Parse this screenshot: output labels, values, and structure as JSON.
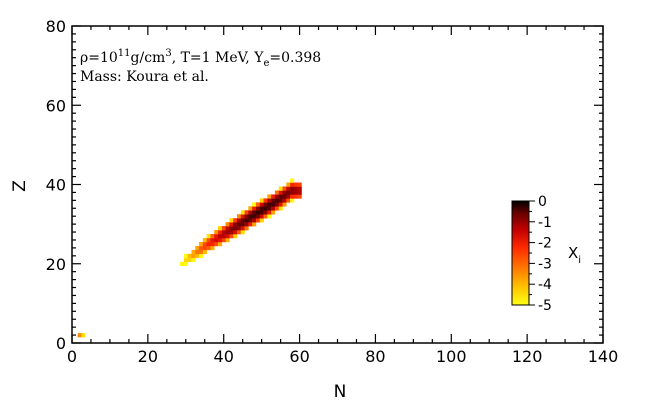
{
  "chart_data": {
    "type": "heatmap",
    "xlabel": "N",
    "ylabel": "Z",
    "xlim": [
      0,
      140
    ],
    "ylim": [
      0,
      80
    ],
    "xticks": [
      "0",
      "20",
      "40",
      "60",
      "80",
      "100",
      "120",
      "140"
    ],
    "yticks": [
      "0",
      "20",
      "40",
      "60",
      "80"
    ],
    "annotation": {
      "line1": {
        "rho_prefix": "ρ=10",
        "rho_exp": "11",
        "rho_unit": "g/cm",
        "rho_unit_exp": "3",
        "temp": ", T=1 MeV, Y",
        "ye_sub": "e",
        "ye_val": "=0.398"
      },
      "line2": "Mass: Koura et al."
    },
    "colorbar": {
      "label_main": "X",
      "label_sub": "i",
      "ticks": [
        "0",
        "-1",
        "-2",
        "-3",
        "-4",
        "-5"
      ],
      "range": [
        -5,
        0
      ],
      "colors": [
        "#ffff14",
        "#ffcc00",
        "#ff7a00",
        "#ff2a00",
        "#c40000",
        "#6a0000",
        "#000000"
      ]
    },
    "ridge": {
      "description_points_N": [
        26,
        30,
        35,
        40,
        45,
        50,
        55,
        58
      ],
      "center_Z": [
        18,
        21,
        24.5,
        27.5,
        30.5,
        33.5,
        36.5,
        38.5
      ],
      "peak_N": 50,
      "peak_Z": 34
    },
    "isolated_points": [
      {
        "N": 2,
        "Z": 2,
        "logX": -3.5
      },
      {
        "N": 3,
        "Z": 2,
        "logX": -4.5
      }
    ]
  }
}
